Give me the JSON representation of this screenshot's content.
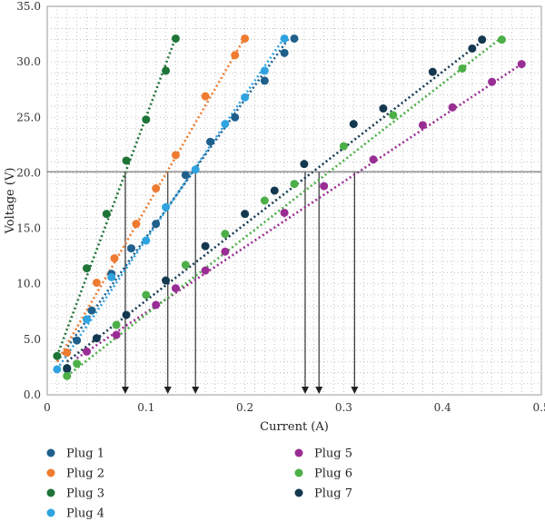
{
  "chart_data": {
    "type": "scatter",
    "xlabel": "Current (A)",
    "ylabel": "Voltage (V)",
    "xlim": [
      0,
      0.5
    ],
    "ylim": [
      0,
      35
    ],
    "x_ticks": [
      "0",
      "0.1",
      "0.2",
      "0.3",
      "0.4",
      "0.5"
    ],
    "y_ticks": [
      "0.0",
      "5.0",
      "10.0",
      "15.0",
      "20.0",
      "25.0",
      "30.0",
      "35.0"
    ],
    "grid": "dotted minor grid",
    "reference_line": {
      "y": 20.1
    },
    "drop_lines_x": [
      0.079,
      0.122,
      0.15,
      0.261,
      0.275,
      0.311
    ],
    "series": [
      {
        "name": "Plug 1",
        "color": "#1f5f8b",
        "trend": [
          [
            0.01,
            3.0
          ],
          [
            0.245,
            32.2
          ]
        ],
        "points": [
          [
            0.02,
            2.3
          ],
          [
            0.03,
            4.9
          ],
          [
            0.045,
            7.6
          ],
          [
            0.065,
            10.9
          ],
          [
            0.085,
            13.2
          ],
          [
            0.11,
            15.4
          ],
          [
            0.14,
            19.8
          ],
          [
            0.165,
            22.8
          ],
          [
            0.19,
            25.0
          ],
          [
            0.22,
            28.3
          ],
          [
            0.24,
            30.8
          ],
          [
            0.25,
            32.1
          ]
        ]
      },
      {
        "name": "Plug 2",
        "color": "#ee7b30",
        "trend": [
          [
            0.01,
            3.0
          ],
          [
            0.2,
            32.2
          ]
        ],
        "points": [
          [
            0.02,
            3.8
          ],
          [
            0.05,
            10.1
          ],
          [
            0.068,
            12.3
          ],
          [
            0.09,
            15.4
          ],
          [
            0.11,
            18.6
          ],
          [
            0.13,
            21.6
          ],
          [
            0.16,
            26.9
          ],
          [
            0.19,
            30.6
          ],
          [
            0.2,
            32.1
          ]
        ]
      },
      {
        "name": "Plug 3",
        "color": "#1e7436",
        "trend": [
          [
            0.01,
            3.5
          ],
          [
            0.13,
            32.2
          ]
        ],
        "points": [
          [
            0.01,
            3.5
          ],
          [
            0.02,
            2.4
          ],
          [
            0.04,
            11.4
          ],
          [
            0.06,
            16.3
          ],
          [
            0.08,
            21.1
          ],
          [
            0.1,
            24.8
          ],
          [
            0.12,
            29.2
          ],
          [
            0.13,
            32.1
          ]
        ]
      },
      {
        "name": "Plug 4",
        "color": "#2fa3e0",
        "trend": [
          [
            0.01,
            2.3
          ],
          [
            0.24,
            32.2
          ]
        ],
        "points": [
          [
            0.01,
            2.3
          ],
          [
            0.04,
            6.8
          ],
          [
            0.065,
            10.6
          ],
          [
            0.1,
            13.9
          ],
          [
            0.12,
            16.9
          ],
          [
            0.15,
            20.3
          ],
          [
            0.18,
            24.4
          ],
          [
            0.2,
            26.8
          ],
          [
            0.22,
            29.2
          ],
          [
            0.24,
            32.1
          ]
        ]
      },
      {
        "name": "Plug 5",
        "color": "#9a2d94",
        "trend": [
          [
            0.03,
            3.3
          ],
          [
            0.48,
            29.8
          ]
        ],
        "points": [
          [
            0.04,
            3.9
          ],
          [
            0.07,
            5.4
          ],
          [
            0.11,
            8.1
          ],
          [
            0.13,
            9.6
          ],
          [
            0.16,
            11.2
          ],
          [
            0.18,
            12.9
          ],
          [
            0.24,
            16.4
          ],
          [
            0.28,
            18.8
          ],
          [
            0.33,
            21.2
          ],
          [
            0.38,
            24.3
          ],
          [
            0.41,
            25.9
          ],
          [
            0.45,
            28.2
          ],
          [
            0.48,
            29.8
          ]
        ]
      },
      {
        "name": "Plug 6",
        "color": "#4caf47",
        "trend": [
          [
            0.02,
            1.7
          ],
          [
            0.46,
            32.2
          ]
        ],
        "points": [
          [
            0.02,
            1.7
          ],
          [
            0.03,
            2.8
          ],
          [
            0.07,
            6.3
          ],
          [
            0.1,
            9.0
          ],
          [
            0.14,
            11.7
          ],
          [
            0.18,
            14.5
          ],
          [
            0.22,
            17.5
          ],
          [
            0.25,
            19.0
          ],
          [
            0.3,
            22.4
          ],
          [
            0.35,
            25.2
          ],
          [
            0.42,
            29.4
          ],
          [
            0.46,
            32.0
          ]
        ]
      },
      {
        "name": "Plug 7",
        "color": "#14384f",
        "trend": [
          [
            0.02,
            3.0
          ],
          [
            0.445,
            32.2
          ]
        ],
        "points": [
          [
            0.02,
            2.4
          ],
          [
            0.05,
            5.1
          ],
          [
            0.08,
            7.2
          ],
          [
            0.12,
            10.3
          ],
          [
            0.16,
            13.4
          ],
          [
            0.2,
            16.3
          ],
          [
            0.23,
            18.4
          ],
          [
            0.26,
            20.8
          ],
          [
            0.31,
            24.4
          ],
          [
            0.34,
            25.8
          ],
          [
            0.39,
            29.1
          ],
          [
            0.43,
            31.2
          ],
          [
            0.44,
            32.0
          ]
        ]
      }
    ]
  }
}
